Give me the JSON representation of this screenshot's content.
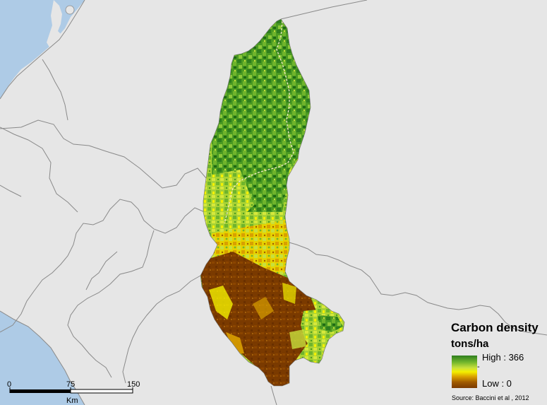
{
  "legend": {
    "title": "Carbon density",
    "units": "tons/ha",
    "high_label": "High : 366",
    "low_label": "Low : 0",
    "mid_mark": "-",
    "ramp_colors": [
      "#2e7d1e",
      "#6fb42c",
      "#c8e03c",
      "#f4f000",
      "#d9a000",
      "#a05a00",
      "#7a3a00"
    ]
  },
  "source": "Source: Baccini et al , 2012",
  "scale_bar": {
    "ticks": [
      "0",
      "75",
      "150"
    ],
    "unit": "Km"
  },
  "colors": {
    "background_land": "#e6e6e6",
    "sea": "#aecbe6",
    "border_lines": "#8a8a8a",
    "high_carbon": "#2e7d1e",
    "medium_carbon": "#f4f000",
    "low_carbon": "#7a3a00"
  }
}
